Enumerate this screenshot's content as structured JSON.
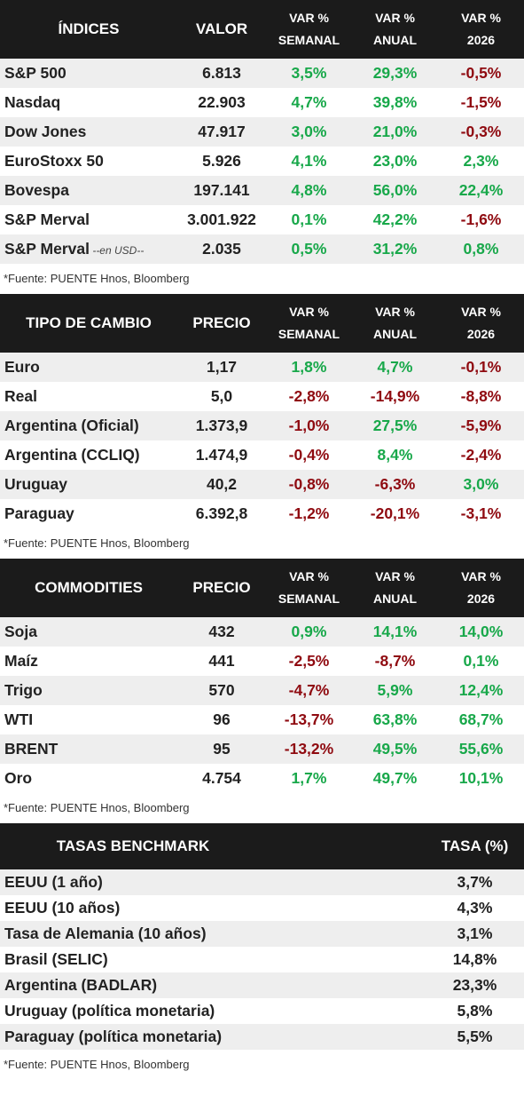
{
  "indices": {
    "headers": {
      "name": "ÍNDICES",
      "value": "VALOR",
      "var_week_1": "VAR %",
      "var_week_2": "SEMANAL",
      "var_year_1": "VAR %",
      "var_year_2": "ANUAL",
      "var_ytd_1": "VAR %",
      "var_ytd_2": "2026"
    },
    "rows": [
      {
        "name": "S&P 500",
        "suffix": "",
        "value": "6.813",
        "week": "3,5%",
        "year": "29,3%",
        "ytd": "-0,5%"
      },
      {
        "name": "Nasdaq",
        "suffix": "",
        "value": "22.903",
        "week": "4,7%",
        "year": "39,8%",
        "ytd": "-1,5%"
      },
      {
        "name": "Dow Jones",
        "suffix": "",
        "value": "47.917",
        "week": "3,0%",
        "year": "21,0%",
        "ytd": "-0,3%"
      },
      {
        "name": "EuroStoxx 50",
        "suffix": "",
        "value": "5.926",
        "week": "4,1%",
        "year": "23,0%",
        "ytd": "2,3%"
      },
      {
        "name": "Bovespa",
        "suffix": "",
        "value": "197.141",
        "week": "4,8%",
        "year": "56,0%",
        "ytd": "22,4%"
      },
      {
        "name": "S&P Merval",
        "suffix": "",
        "value": "3.001.922",
        "week": "0,1%",
        "year": "42,2%",
        "ytd": "-1,6%"
      },
      {
        "name": "S&P Merval",
        "suffix": "--en USD--",
        "value": "2.035",
        "week": "0,5%",
        "year": "31,2%",
        "ytd": "0,8%"
      }
    ],
    "note": "*Fuente: PUENTE Hnos, Bloomberg"
  },
  "fx": {
    "headers": {
      "name": "TIPO DE CAMBIO",
      "value": "PRECIO",
      "var_week_1": "VAR %",
      "var_week_2": "SEMANAL",
      "var_year_1": "VAR %",
      "var_year_2": "ANUAL",
      "var_ytd_1": "VAR %",
      "var_ytd_2": "2026"
    },
    "rows": [
      {
        "name": "Euro",
        "value": "1,17",
        "week": "1,8%",
        "year": "4,7%",
        "ytd": "-0,1%"
      },
      {
        "name": "Real",
        "value": "5,0",
        "week": "-2,8%",
        "year": "-14,9%",
        "ytd": "-8,8%"
      },
      {
        "name": "Argentina (Oficial)",
        "value": "1.373,9",
        "week": "-1,0%",
        "year": "27,5%",
        "ytd": "-5,9%"
      },
      {
        "name": "Argentina (CCLIQ)",
        "value": "1.474,9",
        "week": "-0,4%",
        "year": "8,4%",
        "ytd": "-2,4%"
      },
      {
        "name": "Uruguay",
        "value": "40,2",
        "week": "-0,8%",
        "year": "-6,3%",
        "ytd": "3,0%"
      },
      {
        "name": "Paraguay",
        "value": "6.392,8",
        "week": "-1,2%",
        "year": "-20,1%",
        "ytd": "-3,1%"
      }
    ],
    "note": "*Fuente: PUENTE Hnos, Bloomberg"
  },
  "commodities": {
    "headers": {
      "name": "COMMODITIES",
      "value": "PRECIO",
      "var_week_1": "VAR %",
      "var_week_2": "SEMANAL",
      "var_year_1": "VAR %",
      "var_year_2": "ANUAL",
      "var_ytd_1": "VAR %",
      "var_ytd_2": "2026"
    },
    "rows": [
      {
        "name": "Soja",
        "value": "432",
        "week": "0,9%",
        "year": "14,1%",
        "ytd": "14,0%"
      },
      {
        "name": "Maíz",
        "value": "441",
        "week": "-2,5%",
        "year": "-8,7%",
        "ytd": "0,1%"
      },
      {
        "name": "Trigo",
        "value": "570",
        "week": "-4,7%",
        "year": "5,9%",
        "ytd": "12,4%"
      },
      {
        "name": "WTI",
        "value": "96",
        "week": "-13,7%",
        "year": "63,8%",
        "ytd": "68,7%"
      },
      {
        "name": "BRENT",
        "value": "95",
        "week": "-13,2%",
        "year": "49,5%",
        "ytd": "55,6%"
      },
      {
        "name": "Oro",
        "value": "4.754",
        "week": "1,7%",
        "year": "49,7%",
        "ytd": "10,1%"
      }
    ],
    "note": "*Fuente: PUENTE Hnos, Bloomberg"
  },
  "rates": {
    "headers": {
      "name": "TASAS BENCHMARK",
      "value": "TASA (%)"
    },
    "rows": [
      {
        "name": "EEUU (1 año)",
        "value": "3,7%"
      },
      {
        "name": "EEUU (10 años)",
        "value": "4,3%"
      },
      {
        "name": "Tasa de Alemania (10 años)",
        "value": "3,1%"
      },
      {
        "name": "Brasil (SELIC)",
        "value": "14,8%"
      },
      {
        "name": "Argentina (BADLAR)",
        "value": "23,3%"
      },
      {
        "name": "Uruguay (política monetaria)",
        "value": "5,8%"
      },
      {
        "name": "Paraguay (política monetaria)",
        "value": "5,5%"
      }
    ],
    "note": "*Fuente: PUENTE Hnos, Bloomberg"
  },
  "colors": {
    "positive": "#18a84a",
    "negative": "#8f0a10",
    "header_bg": "#1b1b1b",
    "row_shade": "#eeeeee"
  }
}
